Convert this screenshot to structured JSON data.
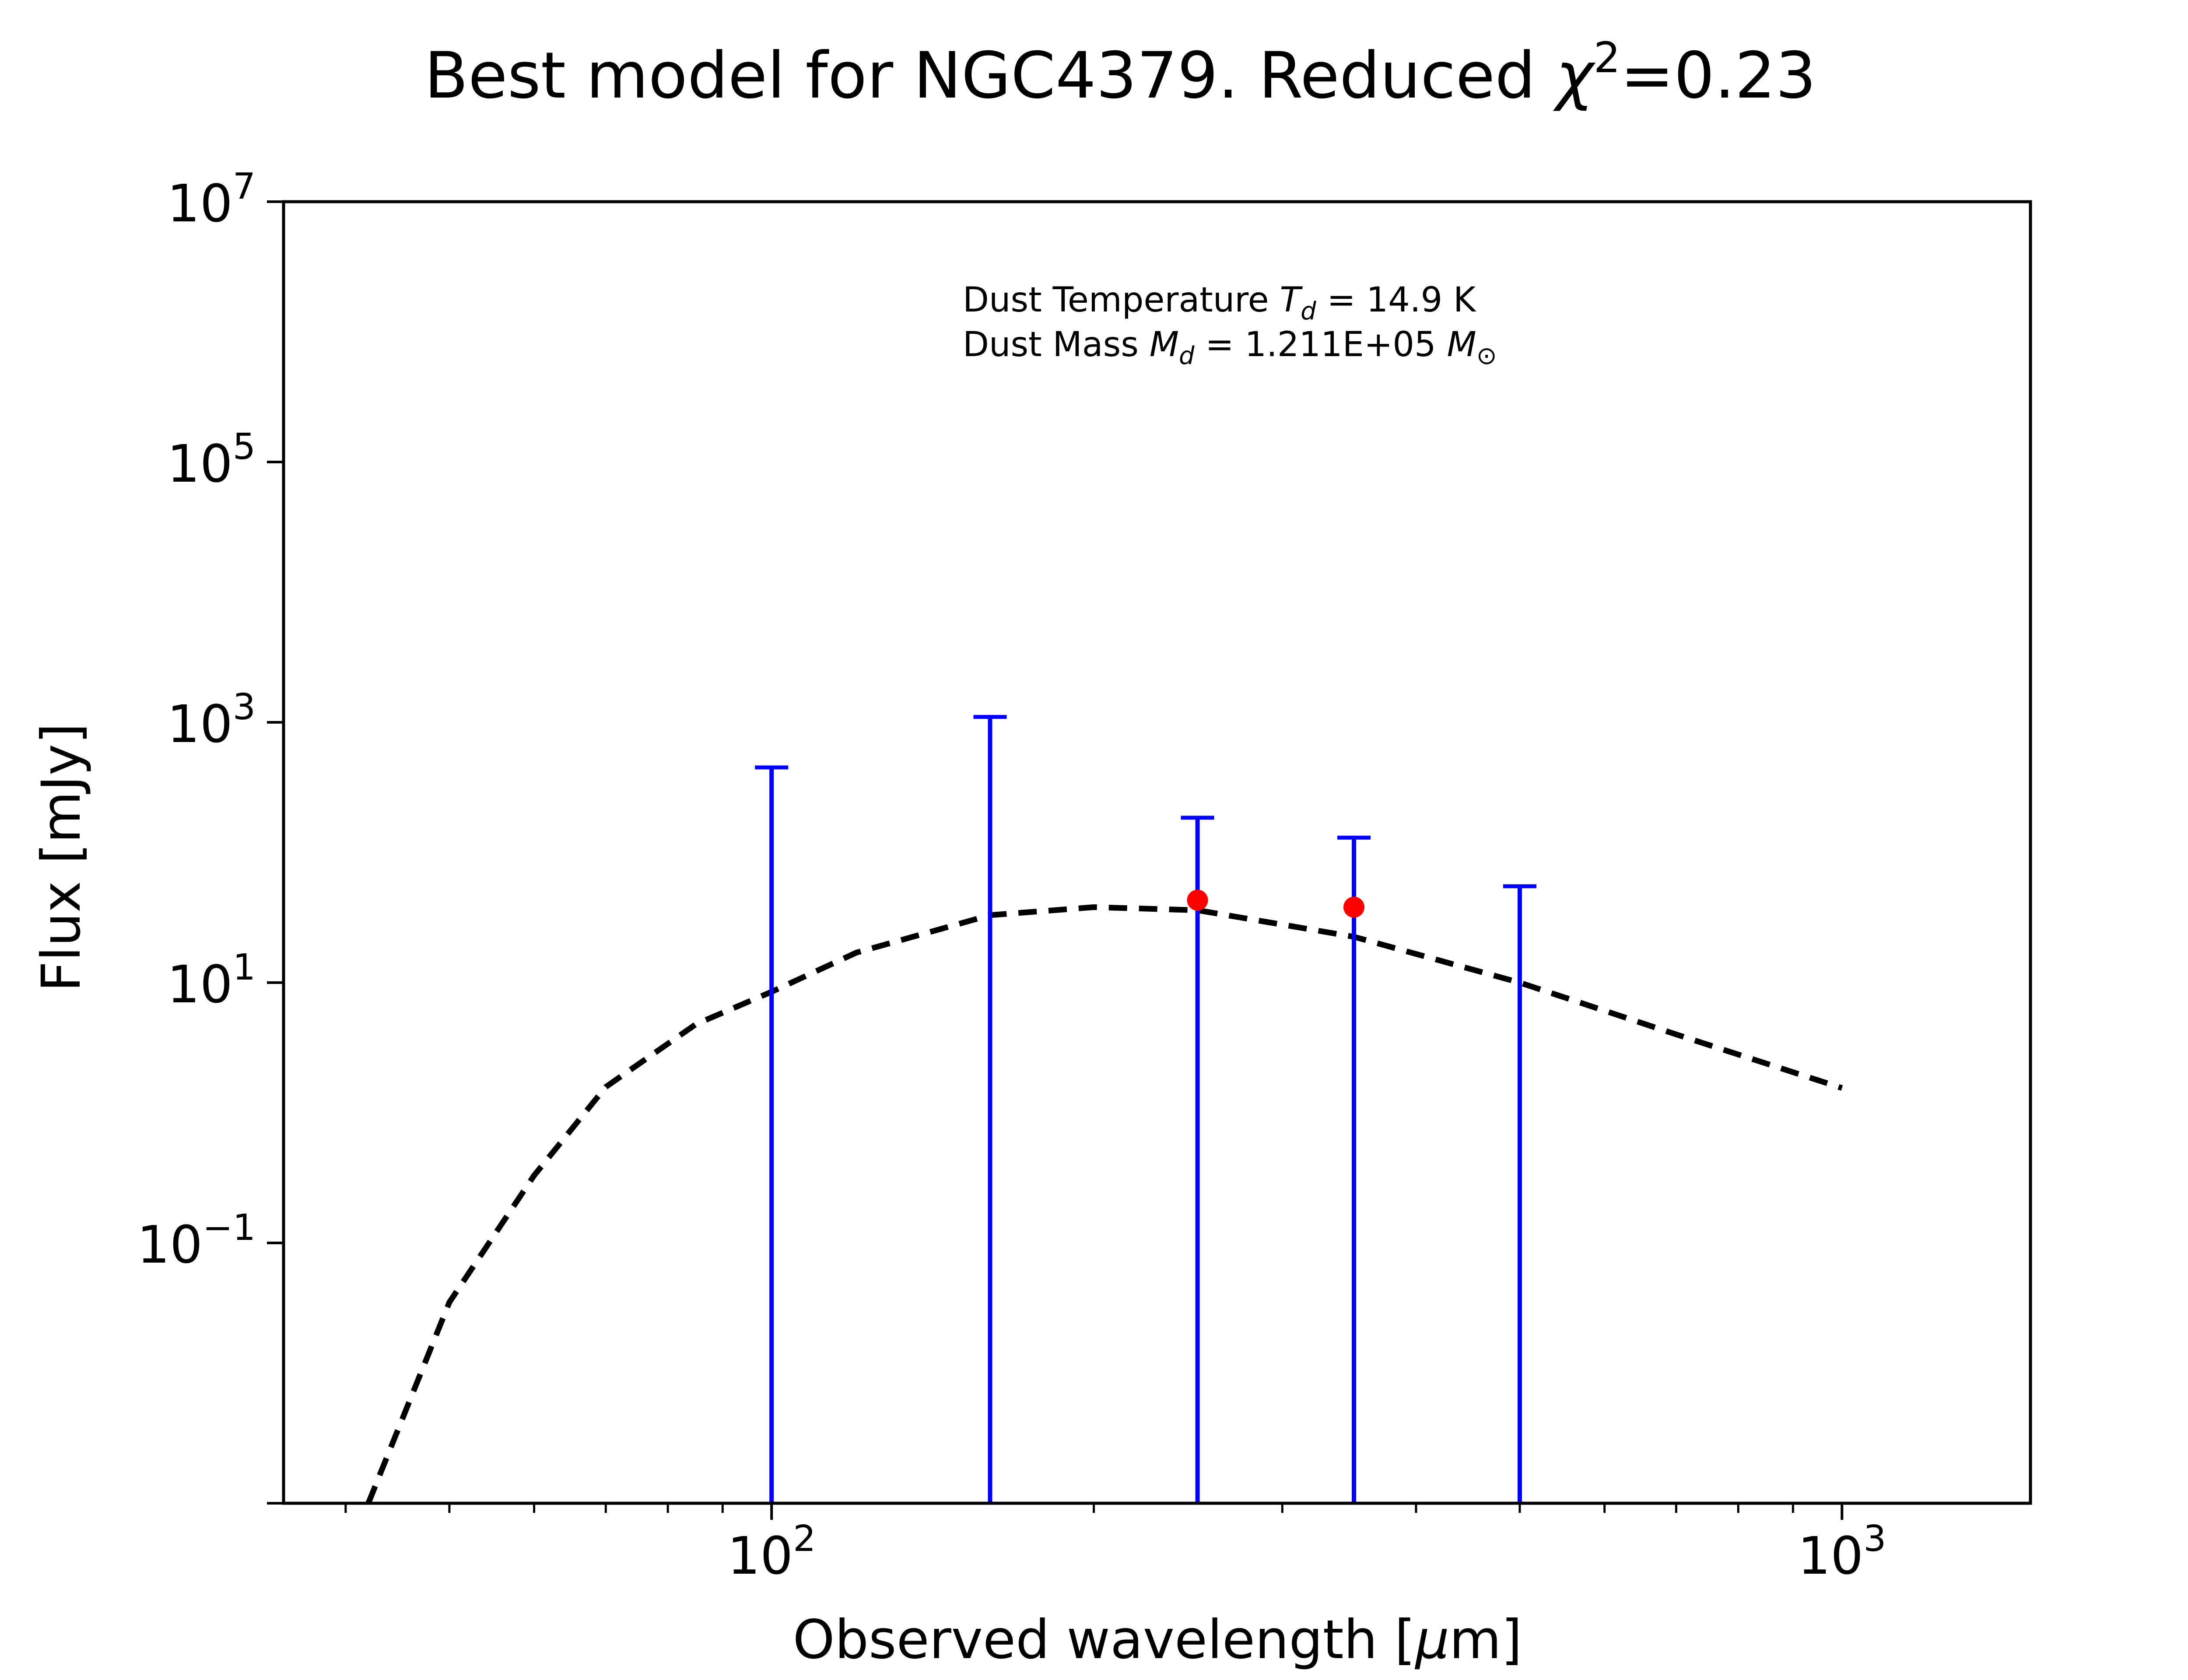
{
  "chart_data": {
    "type": "scatter",
    "title_parts": {
      "prefix": "Best model for NGC4379. Reduced ",
      "chi": "χ",
      "chi_exp": "2",
      "suffix": "=0.23"
    },
    "xlabel_parts": {
      "prefix": "Observed wavelength [",
      "mu": "μ",
      "suffix": "m]"
    },
    "ylabel": "Flux [mJy]",
    "x_scale": "log",
    "y_scale": "log",
    "xlim": [
      35,
      1500
    ],
    "ylim": [
      0.001,
      10000000
    ],
    "x_ticks": [
      {
        "value": 100,
        "base": "10",
        "exp": "2"
      },
      {
        "value": 1000,
        "base": "10",
        "exp": "3"
      }
    ],
    "y_ticks": [
      {
        "value": 0.1,
        "base": "10",
        "exp": "−1"
      },
      {
        "value": 10,
        "base": "10",
        "exp": "1"
      },
      {
        "value": 1000,
        "base": "10",
        "exp": "3"
      },
      {
        "value": 100000,
        "base": "10",
        "exp": "5"
      },
      {
        "value": 10000000,
        "base": "10",
        "exp": "7"
      }
    ],
    "annotation": {
      "temperature": {
        "prefix": "Dust Temperature ",
        "symbol": "T",
        "subscript": "d",
        "value": " = 14.9 K"
      },
      "mass": {
        "prefix": "Dust Mass ",
        "symbol": "M",
        "subscript": "d",
        "value": " = 1.211E+05 ",
        "unit_symbol": "M",
        "unit_subscript": "⊙"
      }
    },
    "model_curve": {
      "label": "",
      "color": "#000000",
      "style": "dashed",
      "points": [
        [
          42.0,
          0.001
        ],
        [
          50.0,
          0.035
        ],
        [
          60.0,
          0.33
        ],
        [
          70.0,
          1.58
        ],
        [
          85.0,
          4.8
        ],
        [
          100.0,
          8.5
        ],
        [
          120.0,
          17.0
        ],
        [
          160.0,
          33.0
        ],
        [
          200.0,
          38.0
        ],
        [
          250.0,
          36.0
        ],
        [
          350.0,
          22.5
        ],
        [
          500.0,
          10.0
        ],
        [
          700.0,
          4.0
        ],
        [
          1000.0,
          1.55
        ]
      ]
    },
    "upper_limits": [
      {
        "x": 100,
        "y": 450
      },
      {
        "x": 160,
        "y": 1100
      },
      {
        "x": 250,
        "y": 185
      },
      {
        "x": 350,
        "y": 130
      },
      {
        "x": 500,
        "y": 55
      }
    ],
    "detections": [
      {
        "x": 250,
        "y": 43
      },
      {
        "x": 350,
        "y": 38
      }
    ],
    "colors": {
      "upper_limits": "#0000ff",
      "detections": "#ff0000",
      "model": "#000000",
      "axes": "#000000"
    },
    "grid": false,
    "legend": "none"
  }
}
